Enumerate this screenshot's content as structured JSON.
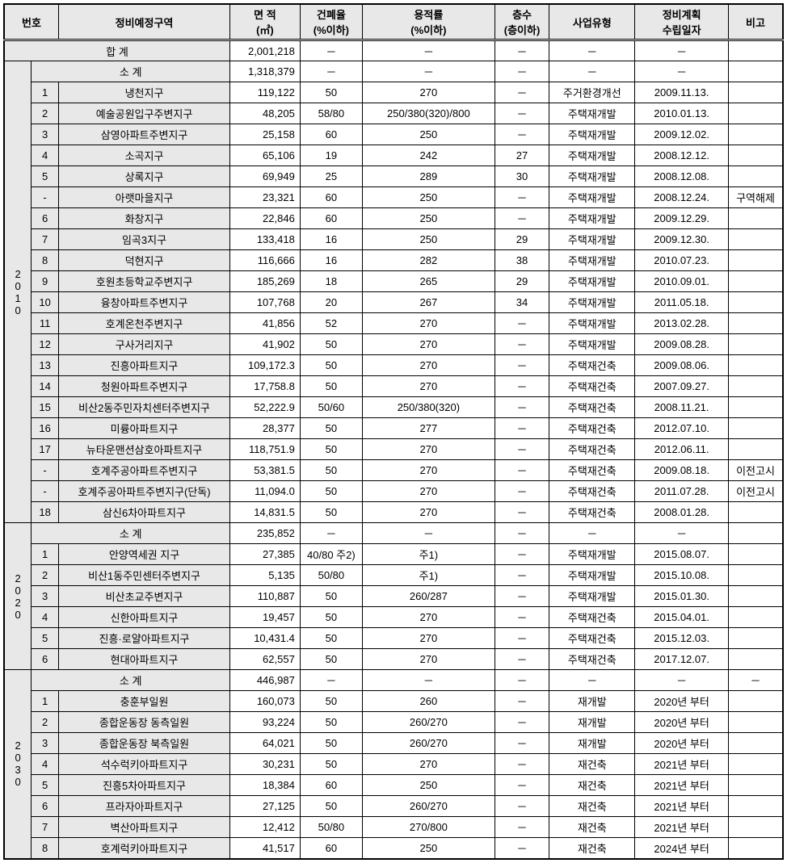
{
  "headers": {
    "no": "번호",
    "zone": "정비예정구역",
    "area": "면 적\n(㎡)",
    "area_l1": "면 적",
    "area_l2": "(㎡)",
    "bcr": "건폐율",
    "bcr_l2": "(%이하)",
    "far": "용적률",
    "far_l2": "(%이하)",
    "floors": "층수",
    "floors_l2": "(층이하)",
    "biztype": "사업유형",
    "plandate": "정비계획",
    "plandate_l2": "수립일자",
    "remark": "비고"
  },
  "totals": {
    "grand_label": "합   계",
    "grand_area": "2,001,218",
    "dash": "－"
  },
  "groups": [
    {
      "year": "2\n0\n1\n0",
      "year_chars": [
        "2",
        "0",
        "1",
        "0"
      ],
      "subtotal_label": "소   계",
      "subtotal_area": "1,318,379",
      "rows": [
        {
          "n": "1",
          "zone": "냉천지구",
          "area": "119,122",
          "bcr": "50",
          "far": "270",
          "fl": "－",
          "bt": "주거환경개선",
          "pd": "2009.11.13.",
          "rm": ""
        },
        {
          "n": "2",
          "zone": "예술공원입구주변지구",
          "area": "48,205",
          "bcr": "58/80",
          "far": "250/380(320)/800",
          "fl": "－",
          "bt": "주택재개발",
          "pd": "2010.01.13.",
          "rm": ""
        },
        {
          "n": "3",
          "zone": "삼영아파트주변지구",
          "area": "25,158",
          "bcr": "60",
          "far": "250",
          "fl": "－",
          "bt": "주택재개발",
          "pd": "2009.12.02.",
          "rm": ""
        },
        {
          "n": "4",
          "zone": "소곡지구",
          "area": "65,106",
          "bcr": "19",
          "far": "242",
          "fl": "27",
          "bt": "주택재개발",
          "pd": "2008.12.12.",
          "rm": ""
        },
        {
          "n": "5",
          "zone": "상록지구",
          "area": "69,949",
          "bcr": "25",
          "far": "289",
          "fl": "30",
          "bt": "주택재개발",
          "pd": "2008.12.08.",
          "rm": ""
        },
        {
          "n": "-",
          "zone": "아랫마을지구",
          "area": "23,321",
          "bcr": "60",
          "far": "250",
          "fl": "－",
          "bt": "주택재개발",
          "pd": "2008.12.24.",
          "rm": "구역해제"
        },
        {
          "n": "6",
          "zone": "화창지구",
          "area": "22,846",
          "bcr": "60",
          "far": "250",
          "fl": "－",
          "bt": "주택재개발",
          "pd": "2009.12.29.",
          "rm": ""
        },
        {
          "n": "7",
          "zone": "임곡3지구",
          "area": "133,418",
          "bcr": "16",
          "far": "250",
          "fl": "29",
          "bt": "주택재개발",
          "pd": "2009.12.30.",
          "rm": ""
        },
        {
          "n": "8",
          "zone": "덕현지구",
          "area": "116,666",
          "bcr": "16",
          "far": "282",
          "fl": "38",
          "bt": "주택재개발",
          "pd": "2010.07.23.",
          "rm": ""
        },
        {
          "n": "9",
          "zone": "호원초등학교주변지구",
          "area": "185,269",
          "bcr": "18",
          "far": "265",
          "fl": "29",
          "bt": "주택재개발",
          "pd": "2010.09.01.",
          "rm": ""
        },
        {
          "n": "10",
          "zone": "융창아파트주변지구",
          "area": "107,768",
          "bcr": "20",
          "far": "267",
          "fl": "34",
          "bt": "주택재개발",
          "pd": "2011.05.18.",
          "rm": ""
        },
        {
          "n": "11",
          "zone": "호계온천주변지구",
          "area": "41,856",
          "bcr": "52",
          "far": "270",
          "fl": "－",
          "bt": "주택재개발",
          "pd": "2013.02.28.",
          "rm": ""
        },
        {
          "n": "12",
          "zone": "구사거리지구",
          "area": "41,902",
          "bcr": "50",
          "far": "270",
          "fl": "－",
          "bt": "주택재개발",
          "pd": "2009.08.28.",
          "rm": ""
        },
        {
          "n": "13",
          "zone": "진흥아파트지구",
          "area": "109,172.3",
          "bcr": "50",
          "far": "270",
          "fl": "－",
          "bt": "주택재건축",
          "pd": "2009.08.06.",
          "rm": ""
        },
        {
          "n": "14",
          "zone": "청원아파트주변지구",
          "area": "17,758.8",
          "bcr": "50",
          "far": "270",
          "fl": "－",
          "bt": "주택재건축",
          "pd": "2007.09.27.",
          "rm": ""
        },
        {
          "n": "15",
          "zone": "비산2동주민자치센터주변지구",
          "area": "52,222.9",
          "bcr": "50/60",
          "far": "250/380(320)",
          "fl": "－",
          "bt": "주택재건축",
          "pd": "2008.11.21.",
          "rm": ""
        },
        {
          "n": "16",
          "zone": "미륭아파트지구",
          "area": "28,377",
          "bcr": "50",
          "far": "277",
          "fl": "－",
          "bt": "주택재건축",
          "pd": "2012.07.10.",
          "rm": ""
        },
        {
          "n": "17",
          "zone": "뉴타운맨션삼호아파트지구",
          "area": "118,751.9",
          "bcr": "50",
          "far": "270",
          "fl": "－",
          "bt": "주택재건축",
          "pd": "2012.06.11.",
          "rm": ""
        },
        {
          "n": "-",
          "zone": "호계주공아파트주변지구",
          "area": "53,381.5",
          "bcr": "50",
          "far": "270",
          "fl": "－",
          "bt": "주택재건축",
          "pd": "2009.08.18.",
          "rm": "이전고시"
        },
        {
          "n": "-",
          "zone": "호계주공아파트주변지구(단독)",
          "area": "11,094.0",
          "bcr": "50",
          "far": "270",
          "fl": "－",
          "bt": "주택재건축",
          "pd": "2011.07.28.",
          "rm": "이전고시"
        },
        {
          "n": "18",
          "zone": "삼신6차아파트지구",
          "area": "14,831.5",
          "bcr": "50",
          "far": "270",
          "fl": "－",
          "bt": "주택재건축",
          "pd": "2008.01.28.",
          "rm": ""
        }
      ]
    },
    {
      "year_chars": [
        "2",
        "0",
        "2",
        "0"
      ],
      "subtotal_label": "소   계",
      "subtotal_area": "235,852",
      "rows": [
        {
          "n": "1",
          "zone": "안양역세권 지구",
          "area": "27,385",
          "bcr": "40/80 주2)",
          "far": "주1)",
          "fl": "－",
          "bt": "주택재개발",
          "pd": "2015.08.07.",
          "rm": ""
        },
        {
          "n": "2",
          "zone": "비산1동주민센터주변지구",
          "area": "5,135",
          "bcr": "50/80",
          "far": "주1)",
          "fl": "－",
          "bt": "주택재개발",
          "pd": "2015.10.08.",
          "rm": ""
        },
        {
          "n": "3",
          "zone": "비산초교주변지구",
          "area": "110,887",
          "bcr": "50",
          "far": "260/287",
          "fl": "－",
          "bt": "주택재개발",
          "pd": "2015.01.30.",
          "rm": ""
        },
        {
          "n": "4",
          "zone": "신한아파트지구",
          "area": "19,457",
          "bcr": "50",
          "far": "270",
          "fl": "－",
          "bt": "주택재건축",
          "pd": "2015.04.01.",
          "rm": ""
        },
        {
          "n": "5",
          "zone": "진흥·로얄아파트지구",
          "area": "10,431.4",
          "bcr": "50",
          "far": "270",
          "fl": "－",
          "bt": "주택재건축",
          "pd": "2015.12.03.",
          "rm": ""
        },
        {
          "n": "6",
          "zone": "현대아파트지구",
          "area": "62,557",
          "bcr": "50",
          "far": "270",
          "fl": "－",
          "bt": "주택재건축",
          "pd": "2017.12.07.",
          "rm": ""
        }
      ]
    },
    {
      "year_chars": [
        "2",
        "0",
        "3",
        "0"
      ],
      "subtotal_label": "소   계",
      "subtotal_area": "446,987",
      "subtotal_rm": "－",
      "rows": [
        {
          "n": "1",
          "zone": "충훈부일원",
          "area": "160,073",
          "bcr": "50",
          "far": "260",
          "fl": "－",
          "bt": "재개발",
          "pd": "2020년 부터",
          "rm": ""
        },
        {
          "n": "2",
          "zone": "종합운동장 동측일원",
          "area": "93,224",
          "bcr": "50",
          "far": "260/270",
          "fl": "－",
          "bt": "재개발",
          "pd": "2020년 부터",
          "rm": ""
        },
        {
          "n": "3",
          "zone": "종합운동장 북측일원",
          "area": "64,021",
          "bcr": "50",
          "far": "260/270",
          "fl": "－",
          "bt": "재개발",
          "pd": "2020년 부터",
          "rm": ""
        },
        {
          "n": "4",
          "zone": "석수럭키아파트지구",
          "area": "30,231",
          "bcr": "50",
          "far": "270",
          "fl": "－",
          "bt": "재건축",
          "pd": "2021년 부터",
          "rm": ""
        },
        {
          "n": "5",
          "zone": "진흥5차아파트지구",
          "area": "18,384",
          "bcr": "60",
          "far": "250",
          "fl": "－",
          "bt": "재건축",
          "pd": "2021년 부터",
          "rm": ""
        },
        {
          "n": "6",
          "zone": "프라자아파트지구",
          "area": "27,125",
          "bcr": "50",
          "far": "260/270",
          "fl": "－",
          "bt": "재건축",
          "pd": "2021년 부터",
          "rm": ""
        },
        {
          "n": "7",
          "zone": "벽산아파트지구",
          "area": "12,412",
          "bcr": "50/80",
          "far": "270/800",
          "fl": "－",
          "bt": "재건축",
          "pd": "2021년 부터",
          "rm": ""
        },
        {
          "n": "8",
          "zone": "호계럭키아파트지구",
          "area": "41,517",
          "bcr": "60",
          "far": "250",
          "fl": "－",
          "bt": "재건축",
          "pd": "2024년 부터",
          "rm": ""
        }
      ]
    }
  ]
}
